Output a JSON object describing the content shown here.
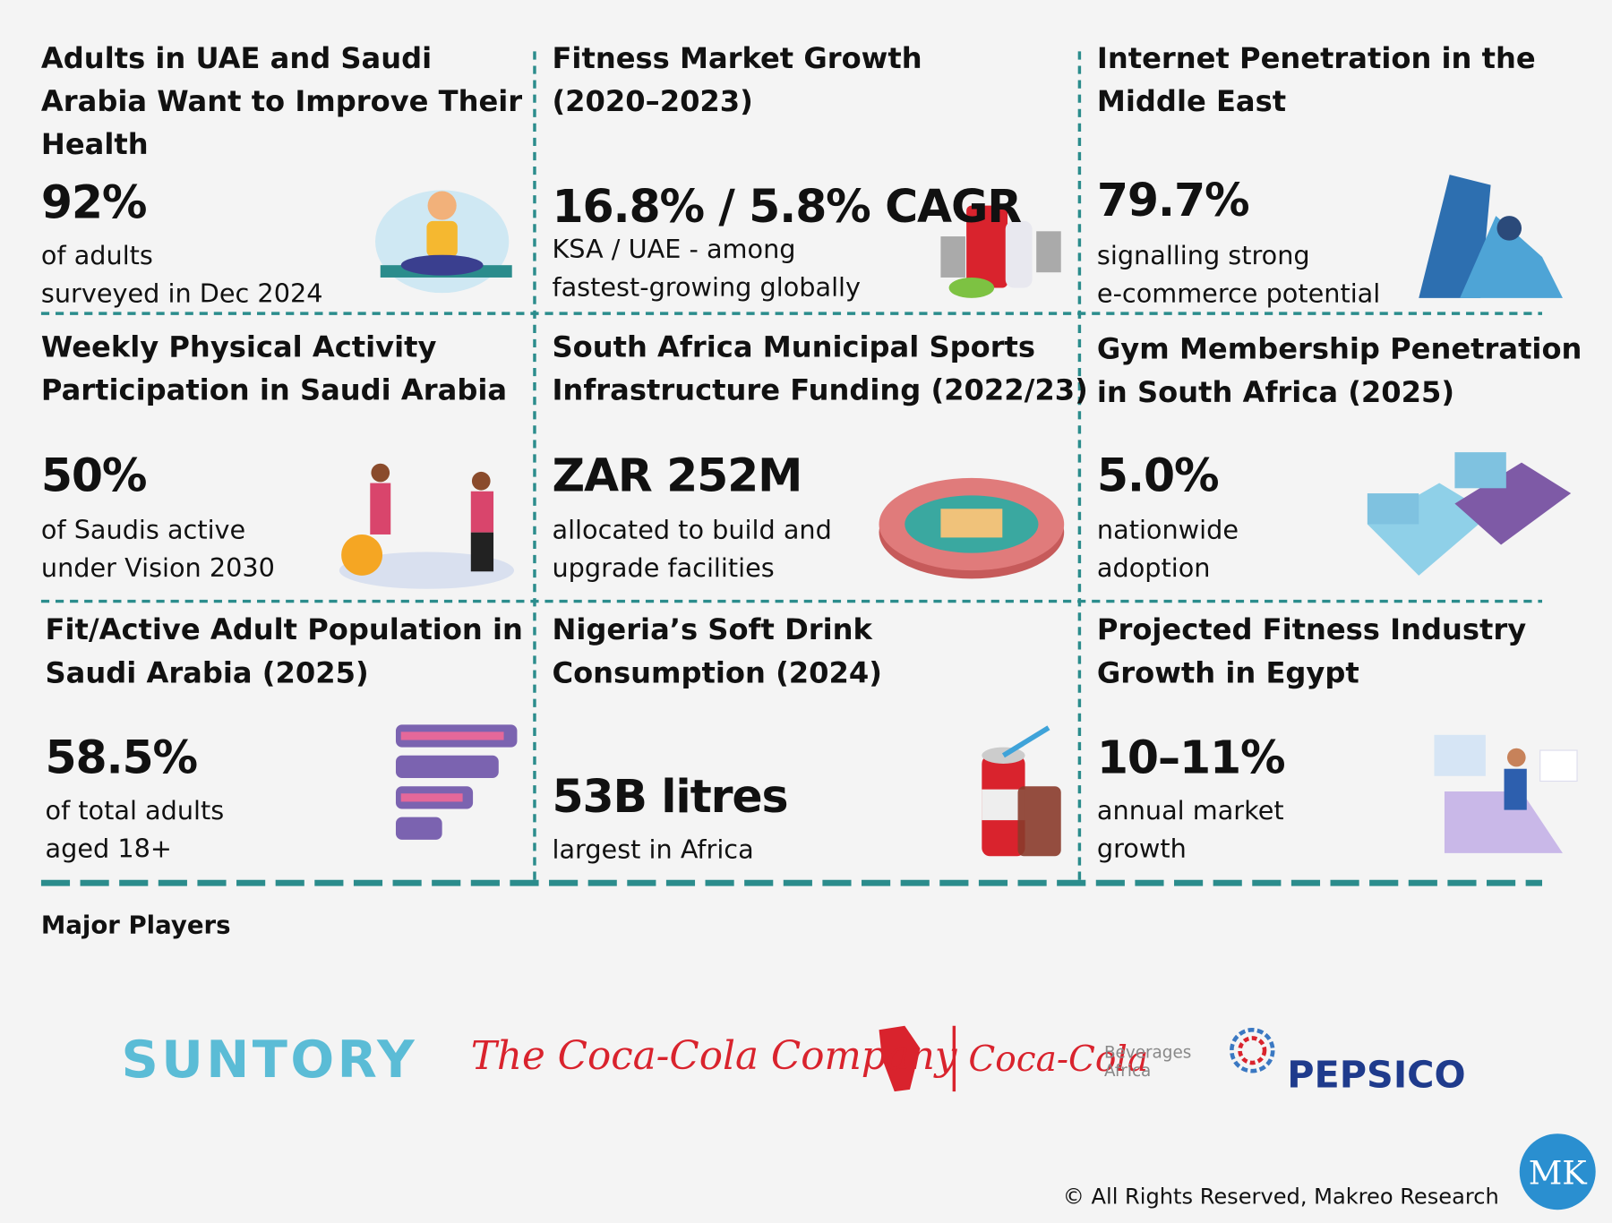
{
  "panels": [
    {
      "title": [
        "Adults in UAE and Saudi",
        "Arabia Want to Improve Their",
        "Health"
      ],
      "stat": "92%",
      "desc": [
        "of adults",
        "surveyed in Dec 2024"
      ]
    },
    {
      "title": [
        "Fitness Market Growth",
        "(2020–2023)"
      ],
      "stat": "16.8% / 5.8% CAGR",
      "desc": [
        "KSA / UAE - among",
        "fastest-growing globally"
      ]
    },
    {
      "title": [
        "Internet Penetration in the",
        "Middle East"
      ],
      "stat": "79.7%",
      "desc": [
        "signalling strong",
        "e-commerce potential"
      ]
    },
    {
      "title": [
        "Weekly Physical Activity",
        "Participation in Saudi Arabia"
      ],
      "stat": "50%",
      "desc": [
        "of Saudis active",
        "under Vision 2030"
      ]
    },
    {
      "title": [
        "South Africa Municipal Sports",
        "Infrastructure Funding (2022/23)"
      ],
      "stat": "ZAR 252M",
      "desc": [
        "allocated to build and",
        "upgrade facilities"
      ]
    },
    {
      "title": [
        "Gym Membership Penetration",
        "in South Africa (2025)"
      ],
      "stat": "5.0%",
      "desc": [
        "nationwide",
        "adoption"
      ]
    },
    {
      "title": [
        "Fit/Active Adult Population in",
        "Saudi Arabia (2025)"
      ],
      "stat": "58.5%",
      "desc": [
        "of total adults",
        "aged 18+"
      ]
    },
    {
      "title": [
        "Nigeria’s Soft Drink",
        "Consumption (2024)"
      ],
      "stat": "53B litres",
      "desc": [
        "largest in Africa"
      ]
    },
    {
      "title": [
        "Projected Fitness Industry",
        "Growth in Egypt"
      ],
      "stat": "10–11%",
      "desc": [
        "annual market",
        "growth"
      ]
    }
  ],
  "players": {
    "heading": "Major Players",
    "logos": {
      "suntory": "SUNTORY",
      "coca_cola_company": "The Coca-Cola Company",
      "ccba_brand": "Coca-Cola",
      "ccba_line1": "Beverages",
      "ccba_line2": "Africa",
      "pepsico": "PEPSICO"
    }
  },
  "footer": {
    "copyright": "© All Rights Reserved, Makreo Research",
    "logo": "MK"
  }
}
